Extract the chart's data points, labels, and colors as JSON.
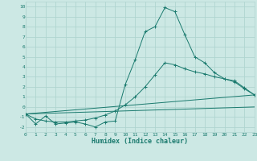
{
  "xlabel": "Humidex (Indice chaleur)",
  "background_color": "#cce8e4",
  "grid_color": "#b0d5d0",
  "line_color": "#1a7a6e",
  "xlim": [
    0,
    23
  ],
  "ylim": [
    -2.5,
    10.5
  ],
  "xticks": [
    0,
    1,
    2,
    3,
    4,
    5,
    6,
    7,
    8,
    9,
    10,
    11,
    12,
    13,
    14,
    15,
    16,
    17,
    18,
    19,
    20,
    21,
    22,
    23
  ],
  "yticks": [
    -2,
    -1,
    0,
    1,
    2,
    3,
    4,
    5,
    6,
    7,
    8,
    9,
    10
  ],
  "series1_x": [
    0,
    1,
    2,
    3,
    4,
    5,
    6,
    7,
    8,
    9,
    10,
    11,
    12,
    13,
    14,
    15,
    16,
    17,
    18,
    19,
    20,
    21,
    22,
    23
  ],
  "series1_y": [
    -0.7,
    -1.7,
    -0.9,
    -1.7,
    -1.6,
    -1.5,
    -1.7,
    -2.0,
    -1.5,
    -1.4,
    2.2,
    4.7,
    7.5,
    8.0,
    9.9,
    9.5,
    7.2,
    5.0,
    4.4,
    3.4,
    2.8,
    2.5,
    1.8,
    1.2
  ],
  "series2_x": [
    0,
    1,
    2,
    3,
    4,
    5,
    6,
    7,
    8,
    9,
    10,
    11,
    12,
    13,
    14,
    15,
    16,
    17,
    18,
    19,
    20,
    21,
    22,
    23
  ],
  "series2_y": [
    -0.7,
    -1.2,
    -1.4,
    -1.5,
    -1.5,
    -1.4,
    -1.3,
    -1.1,
    -0.8,
    -0.4,
    0.2,
    1.0,
    2.0,
    3.2,
    4.4,
    4.2,
    3.8,
    3.5,
    3.3,
    3.0,
    2.8,
    2.6,
    1.9,
    1.2
  ],
  "series3_x": [
    0,
    23
  ],
  "series3_y": [
    -0.7,
    1.2
  ],
  "series4_x": [
    0,
    23
  ],
  "series4_y": [
    -0.7,
    0.0
  ]
}
